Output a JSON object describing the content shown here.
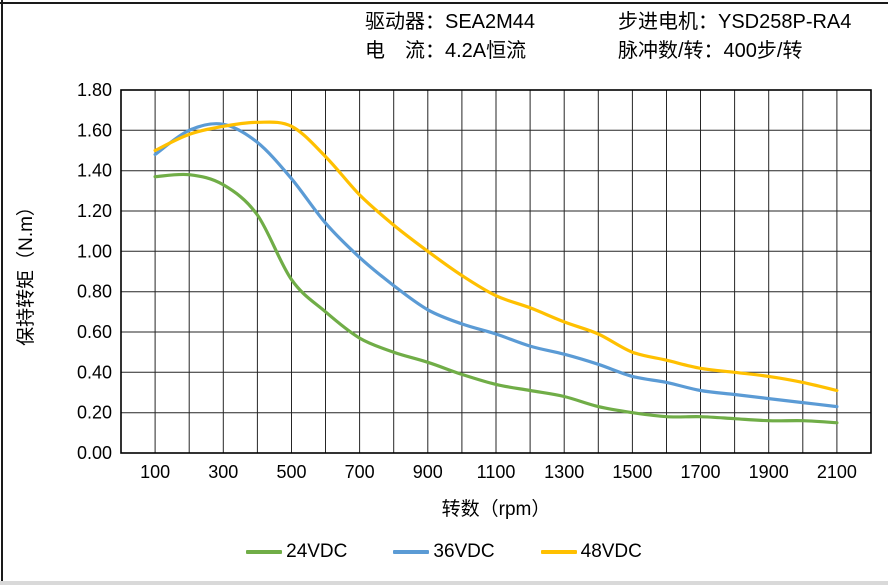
{
  "header": {
    "driver": "驱动器：SEA2M44",
    "current": "电　流：4.2A恒流",
    "motor": "步进电机：YSD258P-RA4",
    "pulses": "脉冲数/转：400步/转"
  },
  "chart_data": {
    "type": "line",
    "title": "",
    "xlabel": "转数（rpm）",
    "ylabel": "保持转矩（N.m）",
    "xlim": [
      0,
      2200
    ],
    "ylim": [
      0,
      1.8
    ],
    "x_grid_step": 100,
    "y_grid_step": 0.2,
    "grid": true,
    "legend_position": "bottom",
    "x": [
      100,
      200,
      300,
      400,
      500,
      600,
      700,
      800,
      900,
      1000,
      1100,
      1200,
      1300,
      1400,
      1500,
      1600,
      1700,
      1800,
      1900,
      2000,
      2100
    ],
    "x_ticks": [
      100,
      300,
      500,
      700,
      900,
      1100,
      1300,
      1500,
      1700,
      1900,
      2100
    ],
    "y_tick_labels": [
      "0.00",
      "0.20",
      "0.40",
      "0.60",
      "0.80",
      "1.00",
      "1.20",
      "1.40",
      "1.60",
      "1.80"
    ],
    "series": [
      {
        "name": "24VDC",
        "color": "#70AD47",
        "values": [
          1.37,
          1.38,
          1.33,
          1.18,
          0.86,
          0.7,
          0.57,
          0.5,
          0.45,
          0.39,
          0.34,
          0.31,
          0.28,
          0.23,
          0.2,
          0.18,
          0.18,
          0.17,
          0.16,
          0.16,
          0.15
        ]
      },
      {
        "name": "36VDC",
        "color": "#5B9BD5",
        "values": [
          1.48,
          1.6,
          1.63,
          1.54,
          1.36,
          1.14,
          0.97,
          0.83,
          0.71,
          0.64,
          0.59,
          0.53,
          0.49,
          0.44,
          0.38,
          0.35,
          0.31,
          0.29,
          0.27,
          0.25,
          0.23
        ]
      },
      {
        "name": "48VDC",
        "color": "#FFC000",
        "values": [
          1.5,
          1.58,
          1.62,
          1.64,
          1.62,
          1.47,
          1.28,
          1.13,
          1.0,
          0.88,
          0.78,
          0.72,
          0.65,
          0.59,
          0.5,
          0.46,
          0.42,
          0.4,
          0.38,
          0.35,
          0.31
        ]
      }
    ]
  }
}
